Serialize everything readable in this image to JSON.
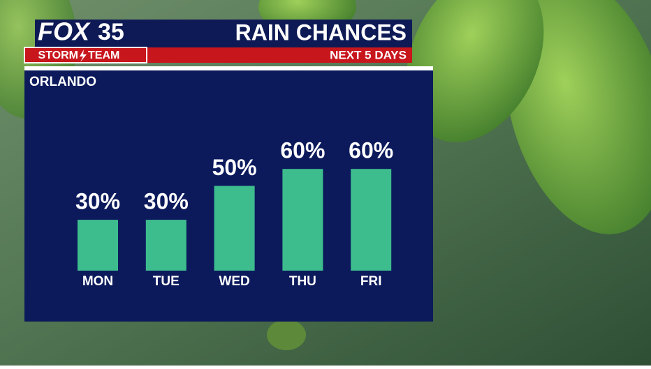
{
  "branding": {
    "network": "FOX",
    "channel": "35",
    "team": [
      "STORM",
      "TEAM"
    ]
  },
  "chart_data": {
    "type": "bar",
    "title": "RAIN CHANCES",
    "subtitle": "NEXT 5 DAYS",
    "location": "ORLANDO",
    "categories": [
      "MON",
      "TUE",
      "WED",
      "THU",
      "FRI"
    ],
    "values": [
      30,
      30,
      50,
      60,
      60
    ],
    "value_labels": [
      "30%",
      "30%",
      "50%",
      "60%",
      "60%"
    ],
    "color": "#3dbd8e"
  }
}
